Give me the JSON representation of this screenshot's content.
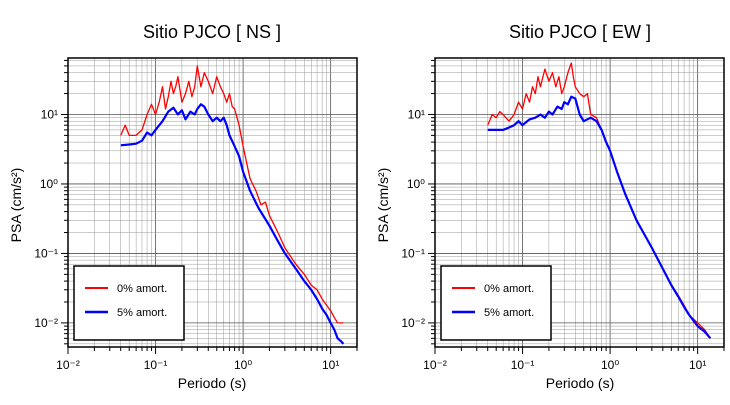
{
  "chart_data": [
    {
      "type": "line",
      "title": "Sitio PJCO [ NS ]",
      "xlabel": "Periodo (s)",
      "ylabel": "PSA (cm/s²)",
      "x_scale": "log",
      "y_scale": "log",
      "xlim": [
        0.01,
        20
      ],
      "ylim": [
        0.0045,
        65
      ],
      "grid": true,
      "legend_position": "bottom-left",
      "x_ticks": [
        "10⁻²",
        "10⁻¹",
        "10⁰",
        "10¹"
      ],
      "y_ticks": [
        "10⁻²",
        "10⁻¹",
        "10⁰",
        "10¹"
      ],
      "series": [
        {
          "name": "0% amort.",
          "color": "#ff0000",
          "x": [
            0.04,
            0.045,
            0.05,
            0.06,
            0.07,
            0.08,
            0.09,
            0.1,
            0.11,
            0.12,
            0.13,
            0.14,
            0.15,
            0.16,
            0.17,
            0.18,
            0.2,
            0.22,
            0.24,
            0.26,
            0.28,
            0.3,
            0.33,
            0.36,
            0.4,
            0.45,
            0.5,
            0.55,
            0.6,
            0.65,
            0.7,
            0.75,
            0.8,
            0.9,
            1.0,
            1.1,
            1.2,
            1.4,
            1.6,
            1.8,
            2.0,
            2.5,
            3.0,
            3.5,
            4.0,
            5.0,
            6.0,
            7.0,
            8.0,
            9.0,
            10.0,
            11.0,
            12.0,
            14.0
          ],
          "y": [
            5.0,
            7.0,
            5.0,
            5.0,
            6.0,
            10.0,
            14.0,
            10.0,
            15.0,
            25.0,
            12.0,
            18.0,
            30.0,
            20.0,
            25.0,
            35.0,
            15.0,
            20.0,
            30.0,
            18.0,
            25.0,
            50.0,
            25.0,
            40.0,
            30.0,
            20.0,
            35.0,
            25.0,
            20.0,
            15.0,
            20.0,
            13.0,
            12.0,
            7.0,
            3.5,
            2.0,
            1.2,
            0.8,
            0.5,
            0.55,
            0.35,
            0.2,
            0.12,
            0.09,
            0.07,
            0.05,
            0.035,
            0.03,
            0.022,
            0.018,
            0.015,
            0.012,
            0.01,
            0.01
          ]
        },
        {
          "name": "5% amort.",
          "color": "#0000ff",
          "x": [
            0.04,
            0.05,
            0.06,
            0.07,
            0.08,
            0.09,
            0.1,
            0.12,
            0.14,
            0.16,
            0.18,
            0.2,
            0.22,
            0.25,
            0.28,
            0.3,
            0.33,
            0.36,
            0.4,
            0.45,
            0.5,
            0.55,
            0.6,
            0.65,
            0.7,
            0.8,
            0.9,
            1.0,
            1.2,
            1.5,
            2.0,
            2.5,
            3.0,
            4.0,
            5.0,
            6.0,
            7.0,
            8.0,
            9.0,
            10.0,
            11.0,
            12.0,
            13.0,
            14.0
          ],
          "y": [
            3.6,
            3.7,
            3.8,
            4.2,
            5.5,
            5.0,
            6.0,
            8.0,
            11.0,
            12.5,
            10.0,
            11.5,
            8.5,
            11.0,
            10.0,
            12.0,
            14.0,
            13.0,
            10.0,
            8.0,
            9.0,
            8.0,
            9.0,
            7.0,
            5.0,
            3.5,
            2.5,
            1.5,
            0.8,
            0.45,
            0.25,
            0.15,
            0.1,
            0.06,
            0.04,
            0.03,
            0.022,
            0.016,
            0.013,
            0.01,
            0.008,
            0.006,
            0.0055,
            0.005
          ]
        }
      ]
    },
    {
      "type": "line",
      "title": "Sitio PJCO [ EW ]",
      "xlabel": "Periodo (s)",
      "ylabel": "PSA (cm/s²)",
      "x_scale": "log",
      "y_scale": "log",
      "xlim": [
        0.01,
        20
      ],
      "ylim": [
        0.0045,
        65
      ],
      "grid": true,
      "legend_position": "bottom-left",
      "x_ticks": [
        "10⁻²",
        "10⁻¹",
        "10⁰",
        "10¹"
      ],
      "y_ticks": [
        "10⁻²",
        "10⁻¹",
        "10⁰",
        "10¹"
      ],
      "series": [
        {
          "name": "0% amort.",
          "color": "#ff0000",
          "x": [
            0.04,
            0.045,
            0.05,
            0.055,
            0.06,
            0.07,
            0.08,
            0.09,
            0.1,
            0.11,
            0.12,
            0.13,
            0.14,
            0.15,
            0.16,
            0.18,
            0.2,
            0.22,
            0.24,
            0.26,
            0.28,
            0.3,
            0.33,
            0.36,
            0.38,
            0.4,
            0.45,
            0.5,
            0.55,
            0.6,
            0.7,
            0.8,
            0.9,
            1.0,
            1.2,
            1.5,
            2.0,
            3.0,
            4.0,
            5.0,
            6.0,
            7.0,
            8.0,
            10.0,
            12.0,
            14.0
          ],
          "y": [
            7.0,
            10.0,
            9.0,
            11.0,
            10.0,
            8.0,
            10.0,
            15.0,
            12.0,
            20.0,
            15.0,
            25.0,
            20.0,
            35.0,
            25.0,
            45.0,
            30.0,
            40.0,
            25.0,
            35.0,
            20.0,
            25.0,
            40.0,
            55.0,
            35.0,
            25.0,
            20.0,
            18.0,
            20.0,
            10.0,
            9.0,
            6.0,
            4.0,
            3.0,
            1.5,
            0.7,
            0.3,
            0.12,
            0.06,
            0.035,
            0.025,
            0.018,
            0.013,
            0.01,
            0.008,
            0.006
          ]
        },
        {
          "name": "5% amort.",
          "color": "#0000ff",
          "x": [
            0.04,
            0.05,
            0.06,
            0.07,
            0.08,
            0.09,
            0.1,
            0.12,
            0.14,
            0.16,
            0.18,
            0.2,
            0.22,
            0.25,
            0.28,
            0.3,
            0.33,
            0.36,
            0.4,
            0.45,
            0.5,
            0.6,
            0.7,
            0.8,
            0.9,
            1.0,
            1.2,
            1.5,
            2.0,
            3.0,
            4.0,
            5.0,
            6.0,
            7.0,
            8.0,
            10.0,
            12.0,
            14.0
          ],
          "y": [
            6.0,
            6.0,
            6.0,
            6.5,
            7.0,
            8.0,
            7.0,
            8.5,
            9.0,
            10.0,
            9.0,
            11.0,
            10.0,
            13.0,
            12.0,
            15.0,
            14.0,
            18.0,
            17.0,
            10.0,
            8.0,
            9.0,
            8.0,
            6.0,
            4.0,
            3.0,
            1.5,
            0.7,
            0.3,
            0.12,
            0.06,
            0.035,
            0.024,
            0.017,
            0.013,
            0.009,
            0.0075,
            0.006
          ]
        }
      ]
    }
  ]
}
